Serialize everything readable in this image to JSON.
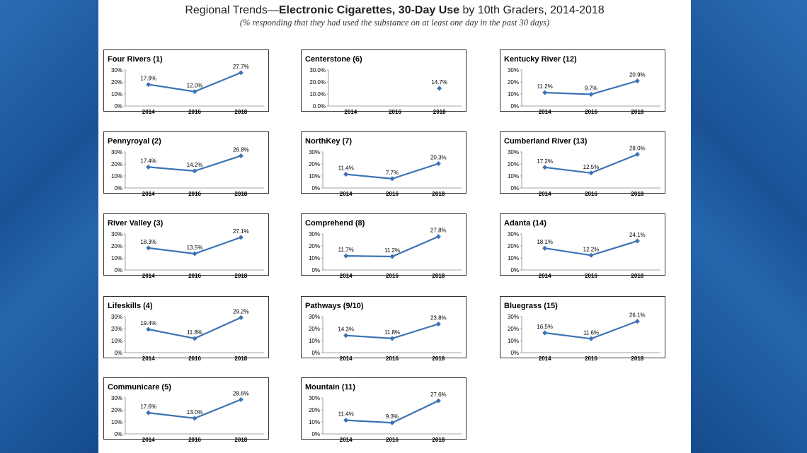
{
  "header": {
    "title_prefix": "Regional Trends—",
    "title_bold": "Electronic Cigarettes, 30-Day Use",
    "title_suffix": " by 10th Graders, 2014-2018",
    "subtitle": "(% responding that they had used the substance on at least one day in the past 30 days)"
  },
  "colors": {
    "line": "#3b73b4",
    "marker": "#3b73b4"
  },
  "chart_data": [
    {
      "type": "line",
      "title": "Four Rivers (1)",
      "categories": [
        "2014",
        "2016",
        "2018"
      ],
      "values": [
        17.9,
        12.0,
        27.7
      ],
      "labels": [
        "17.9%",
        "12.0%",
        "27.7%"
      ],
      "yticks": [
        "0%",
        "10%",
        "20%",
        "30%"
      ],
      "ylim": [
        0,
        30
      ]
    },
    {
      "type": "line",
      "title": "Centerstone (6)",
      "categories": [
        "2014",
        "2016",
        "2018"
      ],
      "values": [
        null,
        null,
        14.7
      ],
      "labels": [
        "",
        "",
        "14.7%"
      ],
      "yticks": [
        "0.0%",
        "10.0%",
        "20.0%",
        "30.0%"
      ],
      "ylim": [
        0,
        30
      ]
    },
    {
      "type": "line",
      "title": "Kentucky River (12)",
      "categories": [
        "2014",
        "2016",
        "2018"
      ],
      "values": [
        11.2,
        9.7,
        20.9
      ],
      "labels": [
        "11.2%",
        "9.7%",
        "20.9%"
      ],
      "yticks": [
        "0%",
        "10%",
        "20%",
        "30%"
      ],
      "ylim": [
        0,
        30
      ]
    },
    {
      "type": "line",
      "title": "Pennyroyal (2)",
      "categories": [
        "2014",
        "2016",
        "2018"
      ],
      "values": [
        17.4,
        14.2,
        26.8
      ],
      "labels": [
        "17.4%",
        "14.2%",
        "26.8%"
      ],
      "yticks": [
        "0%",
        "10%",
        "20%",
        "30%"
      ],
      "ylim": [
        0,
        30
      ]
    },
    {
      "type": "line",
      "title": "NorthKey (7)",
      "categories": [
        "2014",
        "2016",
        "2018"
      ],
      "values": [
        11.4,
        7.7,
        20.3
      ],
      "labels": [
        "11.4%",
        "7.7%",
        "20.3%"
      ],
      "yticks": [
        "0%",
        "10%",
        "20%",
        "30%"
      ],
      "ylim": [
        0,
        30
      ]
    },
    {
      "type": "line",
      "title": "Cumberland River (13)",
      "categories": [
        "2014",
        "2016",
        "2018"
      ],
      "values": [
        17.2,
        12.5,
        28.0
      ],
      "labels": [
        "17.2%",
        "12.5%",
        "28.0%"
      ],
      "yticks": [
        "0%",
        "10%",
        "20%",
        "30%"
      ],
      "ylim": [
        0,
        30
      ]
    },
    {
      "type": "line",
      "title": "River Valley (3)",
      "categories": [
        "2014",
        "2016",
        "2018"
      ],
      "values": [
        18.3,
        13.5,
        27.1
      ],
      "labels": [
        "18.3%",
        "13.5%",
        "27.1%"
      ],
      "yticks": [
        "0%",
        "10%",
        "20%",
        "30%"
      ],
      "ylim": [
        0,
        30
      ]
    },
    {
      "type": "line",
      "title": "Comprehend (8)",
      "categories": [
        "2014",
        "2016",
        "2018"
      ],
      "values": [
        11.7,
        11.2,
        27.8
      ],
      "labels": [
        "11.7%",
        "11.2%",
        "27.8%"
      ],
      "yticks": [
        "0%",
        "10%",
        "20%",
        "30%"
      ],
      "ylim": [
        0,
        30
      ]
    },
    {
      "type": "line",
      "title": "Adanta (14)",
      "categories": [
        "2014",
        "2016",
        "2018"
      ],
      "values": [
        18.1,
        12.2,
        24.1
      ],
      "labels": [
        "18.1%",
        "12.2%",
        "24.1%"
      ],
      "yticks": [
        "0%",
        "10%",
        "20%",
        "30%"
      ],
      "ylim": [
        0,
        30
      ]
    },
    {
      "type": "line",
      "title": "Lifeskills (4)",
      "categories": [
        "2014",
        "2016",
        "2018"
      ],
      "values": [
        19.4,
        11.8,
        29.2
      ],
      "labels": [
        "19.4%",
        "11.8%",
        "29.2%"
      ],
      "yticks": [
        "0%",
        "10%",
        "20%",
        "30%"
      ],
      "ylim": [
        0,
        30
      ]
    },
    {
      "type": "line",
      "title": "Pathways (9/10)",
      "categories": [
        "2014",
        "2016",
        "2018"
      ],
      "values": [
        14.3,
        11.8,
        23.8
      ],
      "labels": [
        "14.3%",
        "11.8%",
        "23.8%"
      ],
      "yticks": [
        "0%",
        "10%",
        "20%",
        "30%"
      ],
      "ylim": [
        0,
        30
      ]
    },
    {
      "type": "line",
      "title": "Bluegrass (15)",
      "categories": [
        "2014",
        "2016",
        "2018"
      ],
      "values": [
        16.5,
        11.6,
        26.1
      ],
      "labels": [
        "16.5%",
        "11.6%",
        "26.1%"
      ],
      "yticks": [
        "0%",
        "10%",
        "20%",
        "30%"
      ],
      "ylim": [
        0,
        30
      ]
    },
    {
      "type": "line",
      "title": "Communicare (5)",
      "categories": [
        "2014",
        "2016",
        "2018"
      ],
      "values": [
        17.6,
        13.0,
        28.6
      ],
      "labels": [
        "17.6%",
        "13.0%",
        "28.6%"
      ],
      "yticks": [
        "0%",
        "10%",
        "20%",
        "30%"
      ],
      "ylim": [
        0,
        30
      ]
    },
    {
      "type": "line",
      "title": "Mountain (11)",
      "categories": [
        "2014",
        "2016",
        "2018"
      ],
      "values": [
        11.4,
        9.3,
        27.6
      ],
      "labels": [
        "11.4%",
        "9.3%",
        "27.6%"
      ],
      "yticks": [
        "0%",
        "10%",
        "20%",
        "30%"
      ],
      "ylim": [
        0,
        30
      ]
    }
  ]
}
